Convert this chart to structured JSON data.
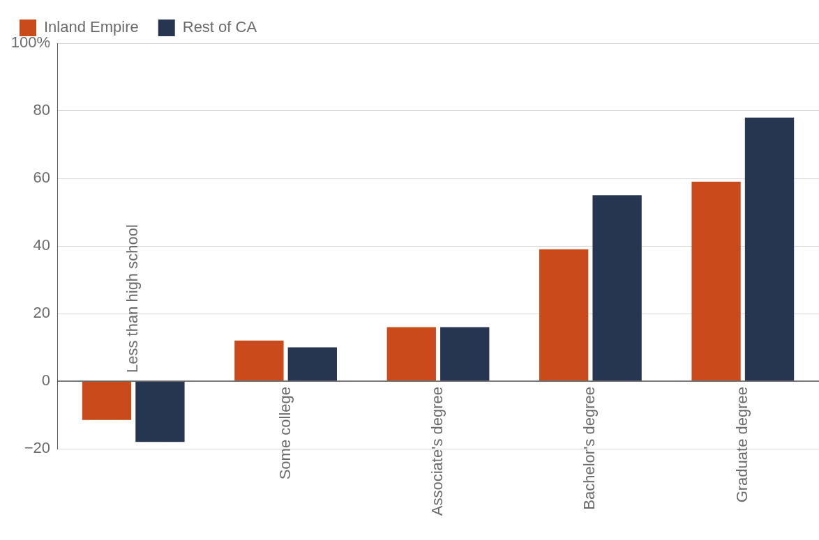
{
  "chart_data": {
    "type": "bar",
    "categories": [
      "Less than high school",
      "Some college",
      "Associate's degree",
      "Bachelor's degree",
      "Graduate degree"
    ],
    "series": [
      {
        "name": "Inland Empire",
        "color": "#c94a1a",
        "values": [
          -11.5,
          12,
          16,
          39,
          59
        ]
      },
      {
        "name": "Rest of CA",
        "color": "#273650",
        "values": [
          -18,
          10,
          16,
          55,
          78
        ]
      }
    ],
    "ylim": [
      -20,
      100
    ],
    "yticks": [
      {
        "value": -20,
        "label": "−20"
      },
      0,
      20,
      40,
      60,
      80,
      {
        "value": 100,
        "label": "100%"
      }
    ],
    "grid": "y",
    "legend": "top left"
  }
}
